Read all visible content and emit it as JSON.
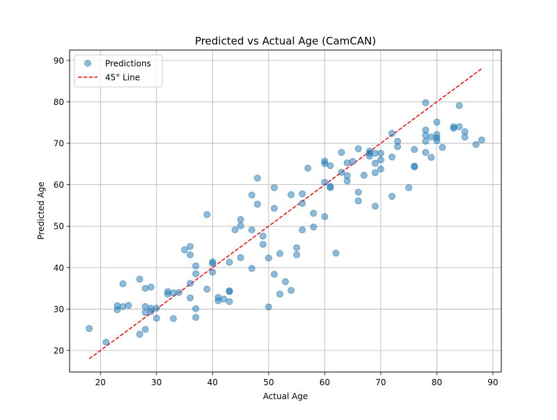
{
  "chart_data": {
    "type": "scatter",
    "title": "Predicted vs Actual Age (CamCAN)",
    "xlabel": "Actual Age",
    "ylabel": "Predicted Age",
    "xlim": [
      14.5,
      91.5
    ],
    "ylim": [
      14.8,
      92.5
    ],
    "xticks": [
      "20",
      "30",
      "40",
      "50",
      "60",
      "70",
      "80",
      "90"
    ],
    "yticks": [
      "20",
      "30",
      "40",
      "50",
      "60",
      "70",
      "80",
      "90"
    ],
    "grid": true,
    "legend_position": "upper-left",
    "series": [
      {
        "name": "Predictions",
        "kind": "scatter",
        "color": "#1f77b4",
        "points": [
          [
            18,
            25.3
          ],
          [
            21,
            22.0
          ],
          [
            23,
            30.8
          ],
          [
            23,
            29.8
          ],
          [
            24,
            30.6
          ],
          [
            24,
            36.1
          ],
          [
            25,
            30.9
          ],
          [
            27,
            37.2
          ],
          [
            27,
            23.9
          ],
          [
            28,
            35.0
          ],
          [
            28,
            30.6
          ],
          [
            28,
            29.2
          ],
          [
            28,
            25.1
          ],
          [
            29,
            35.3
          ],
          [
            29,
            30.2
          ],
          [
            29,
            29.4
          ],
          [
            30,
            30.2
          ],
          [
            30,
            27.8
          ],
          [
            32,
            34.2
          ],
          [
            32,
            33.6
          ],
          [
            33,
            33.9
          ],
          [
            33,
            27.7
          ],
          [
            34,
            34.0
          ],
          [
            35,
            44.3
          ],
          [
            36,
            45.1
          ],
          [
            36,
            43.1
          ],
          [
            36,
            36.2
          ],
          [
            36,
            32.7
          ],
          [
            37,
            40.4
          ],
          [
            37,
            38.5
          ],
          [
            37,
            30.1
          ],
          [
            37,
            28.0
          ],
          [
            39,
            52.8
          ],
          [
            39,
            34.8
          ],
          [
            40,
            41.4
          ],
          [
            40,
            41.0
          ],
          [
            40,
            38.9
          ],
          [
            41,
            32.8
          ],
          [
            41,
            32.0
          ],
          [
            42,
            32.4
          ],
          [
            43,
            41.3
          ],
          [
            43,
            34.4
          ],
          [
            43,
            34.2
          ],
          [
            43,
            31.8
          ],
          [
            44,
            49.1
          ],
          [
            45,
            51.6
          ],
          [
            45,
            50.1
          ],
          [
            45,
            42.4
          ],
          [
            47,
            57.5
          ],
          [
            47,
            49.1
          ],
          [
            47,
            39.8
          ],
          [
            48,
            61.6
          ],
          [
            48,
            55.3
          ],
          [
            49,
            47.6
          ],
          [
            49,
            45.6
          ],
          [
            50,
            42.3
          ],
          [
            50,
            30.5
          ],
          [
            51,
            59.3
          ],
          [
            51,
            54.3
          ],
          [
            51,
            38.4
          ],
          [
            52,
            43.4
          ],
          [
            52,
            33.6
          ],
          [
            53,
            36.6
          ],
          [
            54,
            57.6
          ],
          [
            54,
            34.5
          ],
          [
            55,
            44.8
          ],
          [
            55,
            43.1
          ],
          [
            56,
            57.8
          ],
          [
            56,
            55.5
          ],
          [
            56,
            49.1
          ],
          [
            57,
            64.0
          ],
          [
            58,
            53.1
          ],
          [
            58,
            49.8
          ],
          [
            60,
            65.7
          ],
          [
            60,
            65.1
          ],
          [
            60,
            60.6
          ],
          [
            60,
            52.3
          ],
          [
            61,
            64.6
          ],
          [
            61,
            59.6
          ],
          [
            61,
            59.3
          ],
          [
            62,
            43.5
          ],
          [
            63,
            67.8
          ],
          [
            63,
            63.0
          ],
          [
            64,
            65.3
          ],
          [
            64,
            62.2
          ],
          [
            64,
            60.9
          ],
          [
            65,
            65.6
          ],
          [
            66,
            68.7
          ],
          [
            66,
            58.2
          ],
          [
            66,
            56.1
          ],
          [
            67,
            62.3
          ],
          [
            68,
            68.1
          ],
          [
            68,
            67.6
          ],
          [
            68,
            66.9
          ],
          [
            69,
            67.6
          ],
          [
            69,
            65.2
          ],
          [
            69,
            62.9
          ],
          [
            69,
            54.8
          ],
          [
            70,
            67.6
          ],
          [
            70,
            66.0
          ],
          [
            70,
            63.8
          ],
          [
            72,
            72.4
          ],
          [
            72,
            66.7
          ],
          [
            72,
            57.2
          ],
          [
            73,
            70.5
          ],
          [
            73,
            69.2
          ],
          [
            75,
            59.3
          ],
          [
            76,
            68.5
          ],
          [
            76,
            64.5
          ],
          [
            76,
            64.3
          ],
          [
            78,
            79.8
          ],
          [
            78,
            73.2
          ],
          [
            78,
            71.9
          ],
          [
            78,
            70.5
          ],
          [
            78,
            67.8
          ],
          [
            79,
            71.5
          ],
          [
            79,
            66.6
          ],
          [
            80,
            75.1
          ],
          [
            80,
            72.1
          ],
          [
            80,
            71.3
          ],
          [
            80,
            70.6
          ],
          [
            81,
            69.0
          ],
          [
            83,
            74.0
          ],
          [
            83,
            73.6
          ],
          [
            84,
            79.1
          ],
          [
            84,
            74.0
          ],
          [
            85,
            72.8
          ],
          [
            85,
            71.5
          ],
          [
            87,
            69.7
          ],
          [
            88,
            70.8
          ]
        ]
      },
      {
        "name": "45° Line",
        "kind": "line",
        "style": "dashed",
        "color": "#ff0000",
        "points": [
          [
            18,
            18
          ],
          [
            88,
            88
          ]
        ]
      }
    ]
  }
}
